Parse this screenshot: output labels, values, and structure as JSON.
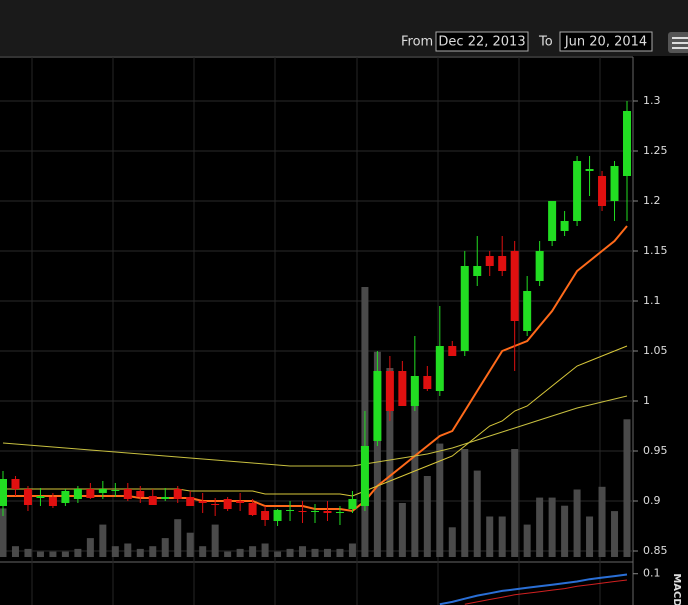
{
  "header": {
    "from_label": "From",
    "from_date": "Dec 22, 2013",
    "to_label": "To",
    "to_date": "Jun 20, 2014"
  },
  "chart_data": [
    {
      "type": "candlestick",
      "up_color": "#22dd22",
      "down_color": "#e01010",
      "ylim": [
        0.843,
        1.344
      ],
      "yticks": [
        0.85,
        0.9,
        0.95,
        1,
        1.05,
        1.1,
        1.15,
        1.2,
        1.25,
        1.3
      ],
      "open": [
        0.895,
        0.922,
        0.912,
        0.903,
        0.904,
        0.898,
        0.902,
        0.912,
        0.908,
        0.91,
        0.912,
        0.91,
        0.905,
        0.902,
        0.912,
        0.904,
        0.9,
        0.897,
        0.902,
        0.9,
        0.898,
        0.89,
        0.88,
        0.89,
        0.89,
        0.889,
        0.89,
        0.888,
        0.892,
        0.895,
        0.96,
        1.03,
        1.03,
        0.995,
        1.025,
        1.01,
        1.055,
        1.05,
        1.125,
        1.145,
        1.145,
        1.15,
        1.07,
        1.12,
        1.16,
        1.17,
        1.18,
        1.23,
        1.225,
        1.2,
        1.225
      ],
      "high": [
        0.93,
        0.925,
        0.915,
        0.913,
        0.908,
        0.912,
        0.915,
        0.918,
        0.92,
        0.918,
        0.918,
        0.915,
        0.912,
        0.913,
        0.915,
        0.91,
        0.908,
        0.903,
        0.904,
        0.908,
        0.902,
        0.895,
        0.892,
        0.9,
        0.9,
        0.897,
        0.9,
        0.895,
        0.91,
        0.99,
        1.05,
        1.045,
        1.04,
        1.065,
        1.035,
        1.095,
        1.06,
        1.15,
        1.165,
        1.15,
        1.165,
        1.16,
        1.125,
        1.16,
        1.2,
        1.19,
        1.245,
        1.245,
        1.23,
        1.24,
        1.3
      ],
      "low": [
        0.885,
        0.905,
        0.89,
        0.895,
        0.893,
        0.895,
        0.898,
        0.902,
        0.902,
        0.904,
        0.9,
        0.898,
        0.897,
        0.9,
        0.898,
        0.895,
        0.888,
        0.885,
        0.89,
        0.89,
        0.885,
        0.875,
        0.875,
        0.88,
        0.878,
        0.878,
        0.88,
        0.876,
        0.888,
        0.89,
        0.955,
        0.98,
        0.995,
        0.99,
        1.01,
        1.005,
        1.045,
        1.045,
        1.115,
        1.125,
        1.125,
        1.03,
        1.065,
        1.115,
        1.155,
        1.165,
        1.175,
        1.205,
        1.19,
        1.18,
        1.18
      ],
      "close": [
        0.922,
        0.912,
        0.896,
        0.905,
        0.895,
        0.91,
        0.912,
        0.903,
        0.912,
        0.911,
        0.902,
        0.904,
        0.896,
        0.904,
        0.902,
        0.895,
        0.898,
        0.896,
        0.892,
        0.898,
        0.886,
        0.881,
        0.891,
        0.891,
        0.889,
        0.89,
        0.888,
        0.889,
        0.902,
        0.955,
        1.03,
        0.99,
        0.995,
        1.025,
        1.012,
        1.055,
        1.045,
        1.135,
        1.135,
        1.135,
        1.13,
        1.08,
        1.11,
        1.15,
        1.2,
        1.18,
        1.24,
        1.232,
        1.195,
        1.235,
        1.29
      ],
      "series": [
        {
          "color": "#ff6a1a",
          "values": [
            0.905,
            0.905,
            0.905,
            0.905,
            0.905,
            0.905,
            0.905,
            0.905,
            0.905,
            0.905,
            0.905,
            0.903,
            0.903,
            0.903,
            0.903,
            0.903,
            0.9,
            0.9,
            0.9,
            0.9,
            0.9,
            0.895,
            0.895,
            0.895,
            0.895,
            0.892,
            0.892,
            0.892,
            0.89,
            0.9,
            0.915,
            0.925,
            0.935,
            0.945,
            0.955,
            0.965,
            0.97,
            0.99,
            1.01,
            1.03,
            1.05,
            1.055,
            1.06,
            1.075,
            1.09,
            1.11,
            1.13,
            1.14,
            1.15,
            1.16,
            1.175
          ]
        },
        {
          "color": "#d8c83a",
          "values": [
            0.912,
            0.912,
            0.912,
            0.912,
            0.912,
            0.912,
            0.912,
            0.912,
            0.912,
            0.912,
            0.912,
            0.912,
            0.912,
            0.912,
            0.912,
            0.91,
            0.91,
            0.91,
            0.91,
            0.91,
            0.91,
            0.907,
            0.907,
            0.907,
            0.907,
            0.907,
            0.907,
            0.907,
            0.905,
            0.91,
            0.915,
            0.92,
            0.925,
            0.93,
            0.935,
            0.94,
            0.945,
            0.955,
            0.965,
            0.975,
            0.98,
            0.99,
            0.995,
            1.005,
            1.015,
            1.025,
            1.035,
            1.04,
            1.045,
            1.05,
            1.055
          ]
        },
        {
          "color": "#c8c040",
          "values": [
            0.958,
            0.957,
            0.956,
            0.955,
            0.954,
            0.953,
            0.952,
            0.951,
            0.95,
            0.949,
            0.948,
            0.947,
            0.946,
            0.945,
            0.944,
            0.943,
            0.942,
            0.941,
            0.94,
            0.939,
            0.938,
            0.937,
            0.936,
            0.935,
            0.935,
            0.935,
            0.935,
            0.935,
            0.935,
            0.937,
            0.939,
            0.941,
            0.943,
            0.945,
            0.947,
            0.95,
            0.953,
            0.957,
            0.961,
            0.965,
            0.969,
            0.973,
            0.977,
            0.981,
            0.985,
            0.989,
            0.993,
            0.996,
            0.999,
            1.002,
            1.005
          ]
        }
      ],
      "volume": [
        18,
        4,
        3,
        2,
        2,
        2,
        3,
        7,
        12,
        4,
        5,
        3,
        4,
        7,
        14,
        9,
        4,
        12,
        2,
        3,
        4,
        5,
        2,
        3,
        4,
        3,
        3,
        3,
        5,
        100,
        76,
        70,
        20,
        58,
        30,
        42,
        11,
        40,
        32,
        15,
        15,
        40,
        12,
        22,
        22,
        19,
        25,
        15,
        26,
        17,
        51
      ],
      "volume_color": "#4a4a4a"
    },
    {
      "type": "line",
      "title": "MACD",
      "ylim": [
        0.06,
        0.115
      ],
      "yticks": [
        0.1
      ],
      "series": [
        {
          "color": "#2a6fd6",
          "values": [
            null,
            null,
            null,
            null,
            null,
            null,
            null,
            null,
            null,
            null,
            null,
            null,
            null,
            null,
            null,
            null,
            null,
            null,
            null,
            null,
            null,
            null,
            null,
            null,
            null,
            null,
            null,
            null,
            null,
            null,
            null,
            null,
            null,
            null,
            null,
            0.061,
            0.064,
            0.068,
            0.072,
            0.075,
            0.078,
            0.08,
            0.082,
            0.084,
            0.086,
            0.088,
            0.09,
            0.093,
            0.095,
            0.097,
            0.099
          ]
        },
        {
          "color": "#d02020",
          "values": [
            null,
            null,
            null,
            null,
            null,
            null,
            null,
            null,
            null,
            null,
            null,
            null,
            null,
            null,
            null,
            null,
            null,
            null,
            null,
            null,
            null,
            null,
            null,
            null,
            null,
            null,
            null,
            null,
            null,
            null,
            null,
            null,
            null,
            null,
            null,
            null,
            null,
            0.061,
            0.064,
            0.067,
            0.07,
            0.073,
            0.075,
            0.077,
            0.079,
            0.081,
            0.084,
            0.086,
            0.088,
            0.09,
            0.092
          ]
        }
      ]
    }
  ]
}
